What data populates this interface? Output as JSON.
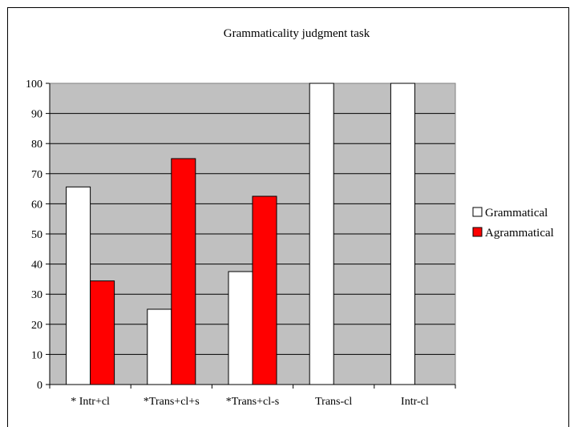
{
  "chart_data": {
    "type": "bar",
    "title": "Grammaticality judgment task",
    "xlabel": "",
    "ylabel": "",
    "categories": [
      "* Intr+cl",
      "*Trans+cl+s",
      "*Trans+cl-s",
      "Trans-cl",
      "Intr-cl"
    ],
    "series": [
      {
        "name": "Grammatical",
        "values": [
          65.6,
          25,
          37.5,
          100,
          100
        ],
        "color": "#ffffff"
      },
      {
        "name": "Agrammatical",
        "values": [
          34.4,
          75,
          62.5,
          0,
          0
        ],
        "color": "#ff0000"
      }
    ],
    "ylim": [
      0,
      100
    ],
    "yticks": [
      0,
      10,
      20,
      30,
      40,
      50,
      60,
      70,
      80,
      90,
      100
    ],
    "grid": true,
    "plot_background": "#c0c0c0",
    "legend_position": "right"
  }
}
